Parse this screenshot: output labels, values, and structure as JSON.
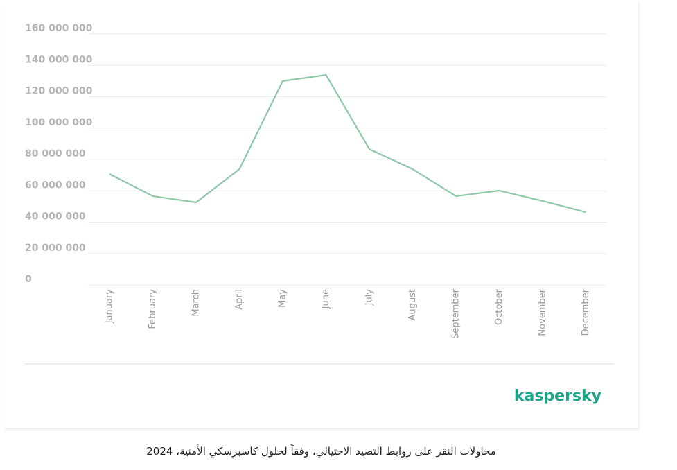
{
  "chart_data": {
    "type": "line",
    "categories": [
      "January",
      "February",
      "March",
      "April",
      "May",
      "June",
      "July",
      "August",
      "September",
      "October",
      "November",
      "December"
    ],
    "values": [
      70700000,
      56600000,
      52600000,
      73800000,
      130000000,
      133900000,
      86600000,
      73800000,
      56600000,
      60100000,
      53500000,
      46400000
    ],
    "color": "#8ec8a6",
    "ylim": [
      0,
      160000000
    ],
    "yticks": [
      0,
      {
        "value": 20000000,
        "label": "20 000 000"
      },
      {
        "value": 40000000,
        "label": "40 000 000"
      },
      {
        "value": 60000000,
        "label": "60 000 000"
      },
      {
        "value": 80000000,
        "label": "80 000 000"
      },
      {
        "value": 100000000,
        "label": "100 000 000"
      },
      {
        "value": 120000000,
        "label": "120 000 000"
      },
      {
        "value": 140000000,
        "label": "140 000 000"
      },
      {
        "value": 160000000,
        "label": "160 000 000"
      }
    ],
    "grid": true
  },
  "brand": "kaspersky",
  "caption": "محاولات النقر على روابط التصيد الاحتيالي، وفقاً لحلول كاسبرسكي الأمنية، 2024"
}
